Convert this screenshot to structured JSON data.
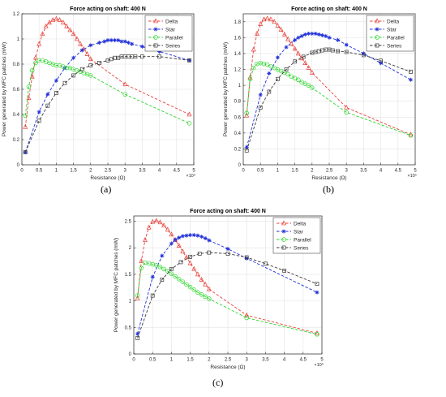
{
  "chart_data": [
    {
      "type": "line",
      "panel_label": "(a)",
      "title": "Force acting on shaft: 400 N",
      "xlabel": "Resistance (Ω)",
      "ylabel": "Power generated by MFC patches (mW)",
      "x_exponent_label": "×10⁵",
      "xlim": [
        0,
        5
      ],
      "ylim": [
        0,
        1.2
      ],
      "xticks": [
        0,
        0.5,
        1,
        1.5,
        2,
        2.5,
        3,
        3.5,
        4,
        4.5,
        5
      ],
      "yticks": [
        0,
        0.2,
        0.4,
        0.6,
        0.8,
        1.0,
        1.2
      ],
      "ytick_labels": [
        "0",
        "0.2",
        "0.4",
        "0.6",
        "0.8",
        "1",
        "1.2"
      ],
      "grid": true,
      "legend_position": "top-right",
      "series": [
        {
          "name": "Delta",
          "color": "#e8413a",
          "marker": "triangle",
          "x": [
            0.1,
            0.2,
            0.3,
            0.4,
            0.5,
            0.6,
            0.7,
            0.8,
            0.9,
            1.0,
            1.1,
            1.2,
            1.3,
            1.4,
            1.5,
            1.6,
            1.7,
            1.8,
            1.9,
            2.0,
            3.0,
            4.87
          ],
          "y": [
            0.3,
            0.53,
            0.7,
            0.85,
            0.96,
            1.04,
            1.1,
            1.13,
            1.15,
            1.16,
            1.15,
            1.13,
            1.1,
            1.07,
            1.04,
            1.0,
            0.96,
            0.92,
            0.88,
            0.84,
            0.64,
            0.4
          ]
        },
        {
          "name": "Star",
          "color": "#1f2fd8",
          "marker": "star",
          "x": [
            0.1,
            0.5,
            0.75,
            1.0,
            1.25,
            1.5,
            1.75,
            2.0,
            2.25,
            2.4,
            2.5,
            2.6,
            2.7,
            2.8,
            2.9,
            3.0,
            3.1,
            3.2,
            3.5,
            4.0,
            4.87
          ],
          "y": [
            0.1,
            0.42,
            0.56,
            0.67,
            0.77,
            0.85,
            0.91,
            0.95,
            0.97,
            0.98,
            0.99,
            0.99,
            0.99,
            0.99,
            0.98,
            0.98,
            0.97,
            0.96,
            0.94,
            0.9,
            0.83
          ]
        },
        {
          "name": "Parallel",
          "color": "#2cd62c",
          "marker": "circle",
          "x": [
            0.1,
            0.2,
            0.3,
            0.4,
            0.5,
            0.6,
            0.7,
            0.8,
            0.9,
            1.0,
            1.1,
            1.2,
            1.3,
            1.4,
            1.5,
            1.6,
            1.7,
            1.8,
            1.9,
            2.0,
            3.0,
            4.87
          ],
          "y": [
            0.39,
            0.62,
            0.75,
            0.81,
            0.83,
            0.83,
            0.82,
            0.81,
            0.8,
            0.79,
            0.79,
            0.78,
            0.77,
            0.77,
            0.76,
            0.75,
            0.74,
            0.73,
            0.72,
            0.71,
            0.56,
            0.33
          ]
        },
        {
          "name": "Series",
          "color": "#3a3a3a",
          "marker": "square",
          "x": [
            0.1,
            0.5,
            0.75,
            1.0,
            1.25,
            1.5,
            1.75,
            2.0,
            2.25,
            2.5,
            2.6,
            2.7,
            2.8,
            2.9,
            3.0,
            3.1,
            3.2,
            3.3,
            3.5,
            4.0,
            4.87
          ],
          "y": [
            0.1,
            0.35,
            0.47,
            0.57,
            0.65,
            0.71,
            0.76,
            0.79,
            0.81,
            0.83,
            0.84,
            0.85,
            0.85,
            0.86,
            0.86,
            0.86,
            0.86,
            0.86,
            0.86,
            0.86,
            0.83
          ]
        }
      ]
    },
    {
      "type": "line",
      "panel_label": "(b)",
      "title": "Force acting on shaft: 400 N",
      "xlabel": "Resistance (Ω)",
      "ylabel": "Power generated by MFC patches (mW)",
      "x_exponent_label": "×10⁵",
      "xlim": [
        0,
        5
      ],
      "ylim": [
        0,
        1.9
      ],
      "xticks": [
        0,
        0.5,
        1,
        1.5,
        2,
        2.5,
        3,
        3.5,
        4,
        4.5,
        5
      ],
      "yticks": [
        0,
        0.2,
        0.4,
        0.6,
        0.8,
        1.0,
        1.2,
        1.4,
        1.6,
        1.8
      ],
      "ytick_labels": [
        "0",
        "0.2",
        "0.4",
        "0.6",
        "0.8",
        "1",
        "1.2",
        "1.4",
        "1.6",
        "1.8"
      ],
      "grid": true,
      "legend_position": "top-right",
      "series": [
        {
          "name": "Delta",
          "color": "#e8413a",
          "marker": "triangle",
          "x": [
            0.1,
            0.2,
            0.3,
            0.4,
            0.5,
            0.6,
            0.7,
            0.8,
            0.9,
            1.0,
            1.1,
            1.2,
            1.3,
            1.4,
            1.5,
            1.6,
            1.7,
            1.8,
            1.9,
            2.0,
            3.0,
            4.87
          ],
          "y": [
            0.62,
            1.1,
            1.45,
            1.65,
            1.77,
            1.83,
            1.84,
            1.83,
            1.8,
            1.75,
            1.7,
            1.64,
            1.58,
            1.52,
            1.46,
            1.4,
            1.34,
            1.28,
            1.22,
            1.16,
            0.72,
            0.38
          ]
        },
        {
          "name": "Star",
          "color": "#1f2fd8",
          "marker": "star",
          "x": [
            0.1,
            0.5,
            0.75,
            1.0,
            1.25,
            1.5,
            1.6,
            1.7,
            1.8,
            1.9,
            2.0,
            2.1,
            2.2,
            2.3,
            2.4,
            2.5,
            2.75,
            3.0,
            3.5,
            4.0,
            4.87
          ],
          "y": [
            0.22,
            0.88,
            1.15,
            1.35,
            1.48,
            1.57,
            1.6,
            1.62,
            1.64,
            1.65,
            1.65,
            1.65,
            1.64,
            1.63,
            1.62,
            1.6,
            1.57,
            1.51,
            1.4,
            1.28,
            1.07
          ]
        },
        {
          "name": "Parallel",
          "color": "#2cd62c",
          "marker": "circle",
          "x": [
            0.1,
            0.2,
            0.3,
            0.4,
            0.5,
            0.6,
            0.7,
            0.8,
            0.9,
            1.0,
            1.1,
            1.2,
            1.3,
            1.4,
            1.5,
            1.6,
            1.7,
            1.8,
            1.9,
            2.0,
            3.0,
            4.87
          ],
          "y": [
            0.65,
            1.08,
            1.22,
            1.27,
            1.28,
            1.27,
            1.26,
            1.24,
            1.22,
            1.2,
            1.18,
            1.16,
            1.14,
            1.11,
            1.09,
            1.07,
            1.04,
            1.02,
            1.0,
            0.97,
            0.66,
            0.37
          ]
        },
        {
          "name": "Series",
          "color": "#3a3a3a",
          "marker": "square",
          "x": [
            0.1,
            0.5,
            0.75,
            1.0,
            1.25,
            1.5,
            1.75,
            2.0,
            2.1,
            2.2,
            2.3,
            2.4,
            2.5,
            2.6,
            2.75,
            3.0,
            3.5,
            4.0,
            4.87
          ],
          "y": [
            0.18,
            0.72,
            0.92,
            1.08,
            1.2,
            1.3,
            1.36,
            1.41,
            1.42,
            1.43,
            1.44,
            1.45,
            1.45,
            1.44,
            1.43,
            1.42,
            1.38,
            1.31,
            1.17
          ]
        }
      ]
    },
    {
      "type": "line",
      "panel_label": "(c)",
      "title": "Force acting on shaft: 400 N",
      "xlabel": "Resistance (Ω)",
      "ylabel": "Power generated by MFC patches (mW)",
      "x_exponent_label": "×10⁵",
      "xlim": [
        0,
        5
      ],
      "ylim": [
        0,
        2.6
      ],
      "xticks": [
        0,
        0.5,
        1,
        1.5,
        2,
        2.5,
        3,
        3.5,
        4,
        4.5,
        5
      ],
      "yticks": [
        0,
        0.5,
        1.0,
        1.5,
        2.0,
        2.5
      ],
      "ytick_labels": [
        "0",
        "0.5",
        "1",
        "1.5",
        "2",
        "2.5"
      ],
      "grid": true,
      "legend_position": "top-right",
      "series": [
        {
          "name": "Delta",
          "color": "#e8413a",
          "marker": "triangle",
          "x": [
            0.1,
            0.2,
            0.3,
            0.4,
            0.5,
            0.6,
            0.7,
            0.8,
            0.9,
            1.0,
            1.1,
            1.2,
            1.3,
            1.4,
            1.5,
            1.6,
            1.7,
            1.8,
            1.9,
            2.0,
            3.0,
            4.87
          ],
          "y": [
            1.05,
            1.75,
            2.15,
            2.38,
            2.49,
            2.51,
            2.48,
            2.42,
            2.34,
            2.25,
            2.15,
            2.04,
            1.93,
            1.82,
            1.71,
            1.6,
            1.5,
            1.4,
            1.31,
            1.22,
            0.73,
            0.39
          ]
        },
        {
          "name": "Star",
          "color": "#1f2fd8",
          "marker": "star",
          "x": [
            0.1,
            0.5,
            0.75,
            1.0,
            1.1,
            1.2,
            1.3,
            1.4,
            1.5,
            1.6,
            1.7,
            1.8,
            1.9,
            2.0,
            2.5,
            3.0,
            4.87
          ],
          "y": [
            0.38,
            1.45,
            1.85,
            2.08,
            2.15,
            2.19,
            2.22,
            2.23,
            2.24,
            2.24,
            2.23,
            2.21,
            2.18,
            2.14,
            1.98,
            1.8,
            1.16
          ]
        },
        {
          "name": "Parallel",
          "color": "#2cd62c",
          "marker": "circle",
          "x": [
            0.1,
            0.2,
            0.3,
            0.4,
            0.5,
            0.6,
            0.7,
            0.8,
            0.9,
            1.0,
            1.1,
            1.2,
            1.3,
            1.4,
            1.5,
            1.6,
            1.7,
            1.8,
            1.9,
            2.0,
            3.0,
            4.87
          ],
          "y": [
            1.1,
            1.62,
            1.72,
            1.71,
            1.69,
            1.67,
            1.64,
            1.6,
            1.56,
            1.51,
            1.46,
            1.41,
            1.36,
            1.31,
            1.26,
            1.21,
            1.16,
            1.12,
            1.08,
            1.04,
            0.68,
            0.37
          ]
        },
        {
          "name": "Series",
          "color": "#3a3a3a",
          "marker": "square",
          "x": [
            0.1,
            0.5,
            0.75,
            1.0,
            1.25,
            1.5,
            1.75,
            2.0,
            2.5,
            3.0,
            3.5,
            4.0,
            4.87
          ],
          "y": [
            0.3,
            1.1,
            1.4,
            1.6,
            1.73,
            1.83,
            1.89,
            1.91,
            1.89,
            1.82,
            1.7,
            1.57,
            1.32
          ]
        }
      ]
    }
  ]
}
